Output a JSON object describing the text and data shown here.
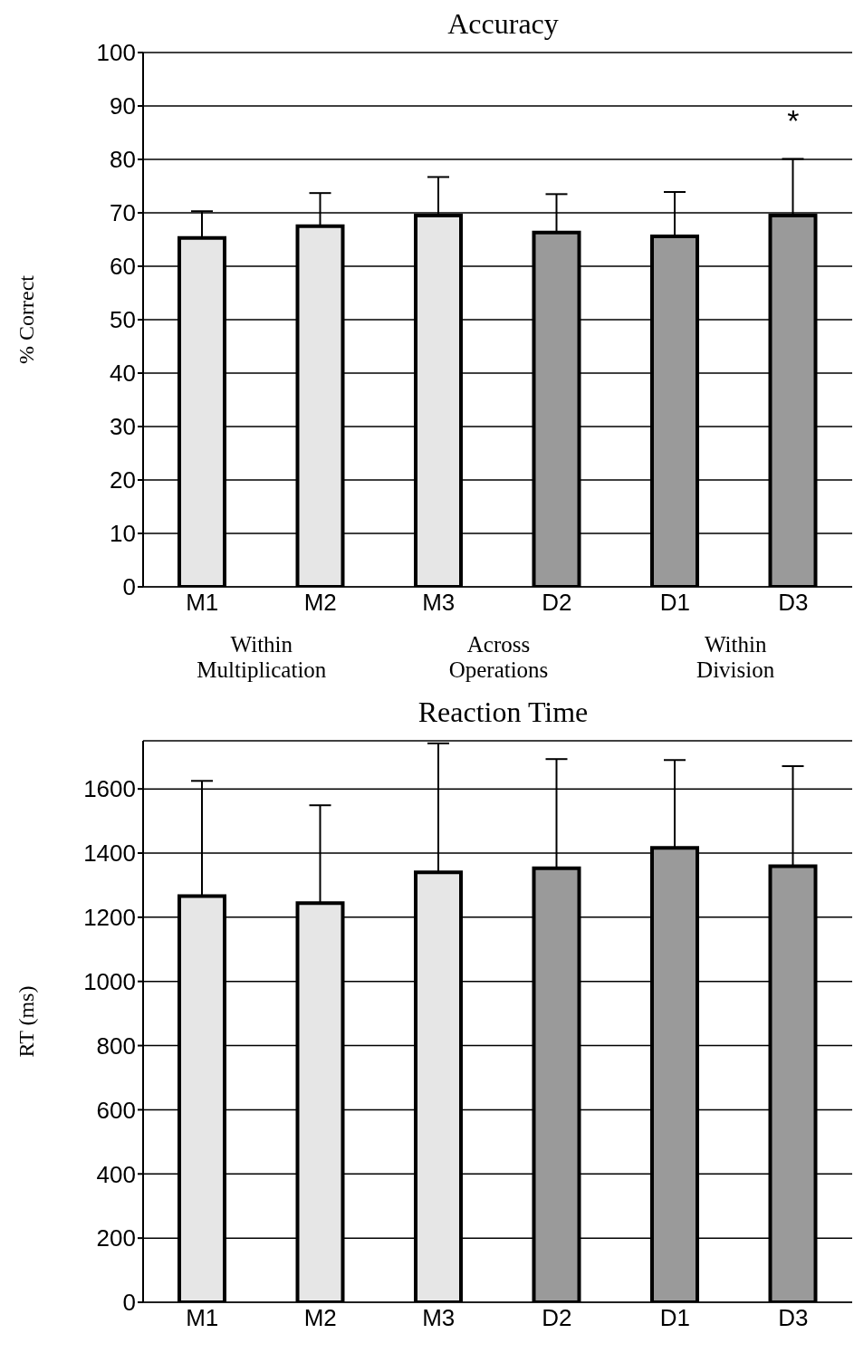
{
  "chart_data": [
    {
      "type": "bar",
      "title": "Accuracy",
      "ylabel": "% Correct",
      "categories": [
        "M1",
        "M2",
        "M3",
        "D2",
        "D1",
        "D3"
      ],
      "values": [
        65.3,
        67.5,
        69.5,
        66.3,
        65.6,
        69.5
      ],
      "colors": [
        "#e6e6e6",
        "#e6e6e6",
        "#e6e6e6",
        "#9a9a9a",
        "#9a9a9a",
        "#9a9a9a"
      ],
      "errors": [
        [
          65.3,
          70.3
        ],
        [
          67.5,
          73.7
        ],
        [
          69.5,
          76.7
        ],
        [
          66.3,
          73.5
        ],
        [
          65.6,
          73.9
        ],
        [
          69.5,
          80.1
        ]
      ],
      "ylim": [
        0,
        100
      ],
      "yticks": [
        0,
        10,
        20,
        30,
        40,
        50,
        60,
        70,
        80,
        90,
        100
      ],
      "grid": "y",
      "annotations": [
        {
          "text": "*",
          "x": "D3",
          "y": 69.5
        },
        "Within Multiplication",
        "Across Operations",
        "Within Division"
      ]
    },
    {
      "type": "bar",
      "title": "Reaction Time",
      "ylabel": "RT (ms)",
      "categories": [
        "M1",
        "M2",
        "M3",
        "D2",
        "D1",
        "D3"
      ],
      "values": [
        1266,
        1244,
        1340,
        1353,
        1416,
        1359
      ],
      "colors": [
        "#e6e6e6",
        "#e6e6e6",
        "#e6e6e6",
        "#9a9a9a",
        "#9a9a9a",
        "#9a9a9a"
      ],
      "errors": [
        [
          1266,
          1625
        ],
        [
          1244,
          1549
        ],
        [
          1340,
          1742
        ],
        [
          1353,
          1693
        ],
        [
          1416,
          1690
        ],
        [
          1359,
          1671
        ]
      ],
      "ylim": [
        0,
        1750
      ],
      "yticks": [
        0,
        200,
        400,
        600,
        800,
        1000,
        1200,
        1400,
        1600
      ],
      "grid": "y"
    }
  ]
}
